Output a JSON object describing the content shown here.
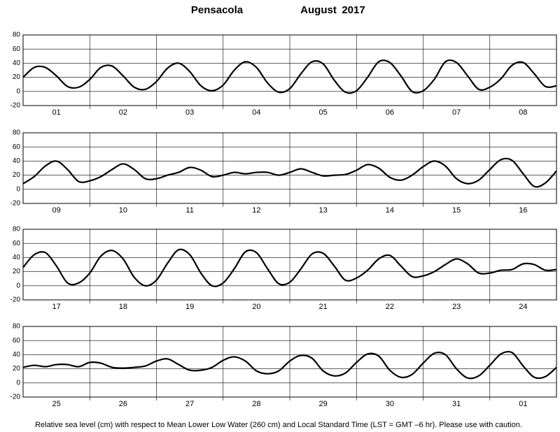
{
  "header": {
    "place": "Pensacola",
    "month": "August",
    "year": "2017"
  },
  "footer": "Relative sea level (cm) with respect to Mean Lower Low Water (260 cm) and Local Standard Time (LST = GMT –6 hr). Please use with caution.",
  "chart_data": [
    {
      "type": "line",
      "categories": [
        "01",
        "02",
        "03",
        "04",
        "05",
        "06",
        "07",
        "08"
      ],
      "x": [
        0,
        4,
        8,
        12,
        16,
        20,
        24,
        28,
        32,
        36,
        40,
        44,
        48,
        52,
        56,
        60,
        64,
        68,
        72,
        76,
        80,
        84,
        88,
        92,
        96,
        100,
        104,
        108,
        112,
        116,
        120,
        124,
        128,
        132,
        136,
        140,
        144,
        148,
        152,
        156,
        160,
        164,
        168,
        172,
        176,
        180,
        184,
        188,
        192
      ],
      "xlim": [
        0,
        192
      ],
      "xticks": [
        24,
        48,
        72,
        96,
        120,
        144,
        168
      ],
      "ylim": [
        -20,
        80
      ],
      "yticks": [
        -20,
        0,
        20,
        40,
        60,
        80
      ],
      "grid": true,
      "series": [
        {
          "color": "#000000",
          "values": [
            20,
            34,
            34,
            22,
            7,
            6,
            17,
            34,
            36,
            22,
            6,
            3,
            14,
            33,
            40,
            28,
            8,
            1,
            9,
            30,
            42,
            34,
            12,
            -1,
            4,
            25,
            42,
            39,
            16,
            -1,
            1,
            20,
            42,
            41,
            22,
            0,
            1,
            17,
            42,
            41,
            22,
            3,
            6,
            18,
            37,
            41,
            25,
            7,
            8
          ]
        }
      ]
    },
    {
      "type": "line",
      "categories": [
        "09",
        "10",
        "11",
        "12",
        "13",
        "14",
        "15",
        "16"
      ],
      "x": [
        0,
        4,
        8,
        12,
        16,
        20,
        24,
        28,
        32,
        36,
        40,
        44,
        48,
        52,
        56,
        60,
        64,
        68,
        72,
        76,
        80,
        84,
        88,
        92,
        96,
        100,
        104,
        108,
        112,
        116,
        120,
        124,
        128,
        132,
        136,
        140,
        144,
        148,
        152,
        156,
        160,
        164,
        168,
        172,
        176,
        180,
        184,
        188,
        192
      ],
      "xlim": [
        0,
        192
      ],
      "xticks": [
        24,
        48,
        72,
        96,
        120,
        144,
        168
      ],
      "ylim": [
        -20,
        80
      ],
      "yticks": [
        -20,
        0,
        20,
        40,
        60,
        80
      ],
      "grid": true,
      "series": [
        {
          "color": "#000000",
          "values": [
            8,
            18,
            33,
            40,
            28,
            11,
            12,
            18,
            28,
            36,
            28,
            15,
            15,
            20,
            24,
            31,
            27,
            18,
            20,
            24,
            22,
            24,
            24,
            20,
            24,
            29,
            24,
            19,
            20,
            21,
            27,
            35,
            30,
            17,
            13,
            20,
            32,
            40,
            33,
            15,
            8,
            13,
            28,
            42,
            41,
            22,
            4,
            9,
            26
          ]
        }
      ]
    },
    {
      "type": "line",
      "categories": [
        "17",
        "18",
        "19",
        "20",
        "21",
        "22",
        "23",
        "24"
      ],
      "x": [
        0,
        4,
        8,
        12,
        16,
        20,
        24,
        28,
        32,
        36,
        40,
        44,
        48,
        52,
        56,
        60,
        64,
        68,
        72,
        76,
        80,
        84,
        88,
        92,
        96,
        100,
        104,
        108,
        112,
        116,
        120,
        124,
        128,
        132,
        136,
        140,
        144,
        148,
        152,
        156,
        160,
        164,
        168,
        172,
        176,
        180,
        184,
        188,
        192
      ],
      "xlim": [
        0,
        192
      ],
      "xticks": [
        24,
        48,
        72,
        96,
        120,
        144,
        168
      ],
      "ylim": [
        -20,
        80
      ],
      "yticks": [
        -20,
        0,
        20,
        40,
        60,
        80
      ],
      "grid": true,
      "series": [
        {
          "color": "#000000",
          "values": [
            26,
            44,
            47,
            28,
            4,
            4,
            18,
            42,
            50,
            38,
            12,
            0,
            8,
            32,
            51,
            44,
            18,
            0,
            4,
            24,
            48,
            47,
            24,
            3,
            5,
            24,
            45,
            46,
            28,
            8,
            11,
            22,
            38,
            43,
            28,
            13,
            14,
            20,
            30,
            38,
            31,
            18,
            18,
            22,
            23,
            31,
            30,
            22,
            23
          ]
        }
      ]
    },
    {
      "type": "line",
      "categories": [
        "25",
        "26",
        "27",
        "28",
        "29",
        "30",
        "31",
        "01"
      ],
      "x": [
        0,
        4,
        8,
        12,
        16,
        20,
        24,
        28,
        32,
        36,
        40,
        44,
        48,
        52,
        56,
        60,
        64,
        68,
        72,
        76,
        80,
        84,
        88,
        92,
        96,
        100,
        104,
        108,
        112,
        116,
        120,
        124,
        128,
        132,
        136,
        140,
        144,
        148,
        152,
        156,
        160,
        164,
        168,
        172,
        176,
        180,
        184,
        188,
        192
      ],
      "xlim": [
        0,
        192
      ],
      "xticks": [
        24,
        48,
        72,
        96,
        120,
        144,
        168
      ],
      "ylim": [
        -20,
        80
      ],
      "yticks": [
        -20,
        0,
        20,
        40,
        60,
        80
      ],
      "grid": true,
      "series": [
        {
          "color": "#000000",
          "values": [
            22,
            25,
            23,
            26,
            26,
            23,
            29,
            28,
            22,
            21,
            22,
            24,
            31,
            34,
            26,
            18,
            18,
            22,
            32,
            37,
            31,
            17,
            13,
            17,
            31,
            39,
            35,
            17,
            10,
            14,
            29,
            41,
            38,
            18,
            8,
            12,
            28,
            42,
            40,
            20,
            7,
            10,
            25,
            41,
            43,
            24,
            8,
            9,
            22
          ]
        }
      ]
    }
  ]
}
